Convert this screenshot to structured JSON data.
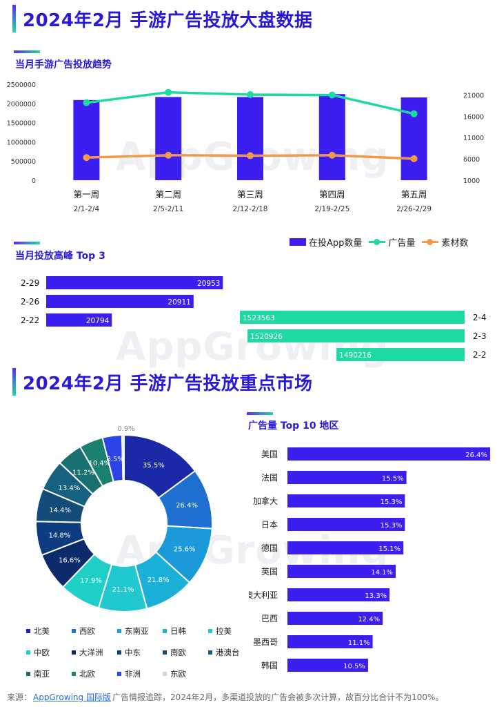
{
  "section1_title": "2024年2月 手游广告投放大盘数据",
  "section2_title": "2024年2月 手游广告投放重点市场",
  "watermark": "AppGrowing",
  "trend": {
    "subtitle": "当月手游广告投放趋势",
    "legend": [
      "在投App数量",
      "广告量",
      "素材数"
    ],
    "colors": {
      "bar": "#3b1ef0",
      "ads": "#1ed9a4",
      "creatives": "#f2994a"
    }
  },
  "peak": {
    "subtitle": "当月投放高峰 Top 3"
  },
  "market": {
    "top10_title": "广告量 Top 10 地区",
    "donut_legend": [
      "北美",
      "西欧",
      "东南亚",
      "日韩",
      "拉美",
      "中欧",
      "大洋洲",
      "中东",
      "南欧",
      "港澳台",
      "南亚",
      "北欧",
      "非洲",
      "东欧"
    ]
  },
  "footer": {
    "prefix": "来源：",
    "brand": "AppGrowing 国际版",
    "text": "广告情报追踪，2024年2月，多渠道投放的广告会被多次计算，故百分比合计不为100%。"
  },
  "chart_data": [
    {
      "type": "bar",
      "title": "当月手游广告投放趋势",
      "categories": [
        "第一周",
        "第二周",
        "第三周",
        "第四周",
        "第五周"
      ],
      "sublabels": [
        "2/1-2/4",
        "2/5-2/11",
        "2/12-2/18",
        "2/19-2/25",
        "2/26-2/29"
      ],
      "y_ticks": [
        "2500000",
        "2000000",
        "1500000",
        "1000000",
        "500000",
        "0"
      ],
      "y2_ticks": [
        "21000",
        "16000",
        "11000",
        "6000",
        "1000"
      ],
      "ylim": [
        0,
        2500000
      ],
      "y2lim": [
        1000,
        23500
      ],
      "legend_position": "bottom-right",
      "series": [
        {
          "name": "在投App数量",
          "kind": "bar",
          "axis": "right",
          "values": [
            19800,
            20500,
            20500,
            21200,
            20400
          ]
        },
        {
          "name": "广告量",
          "kind": "line",
          "axis": "left",
          "values": [
            2020000,
            2290000,
            2230000,
            2220000,
            1730000
          ]
        },
        {
          "name": "素材数",
          "kind": "line",
          "axis": "left",
          "values": [
            590000,
            650000,
            640000,
            650000,
            560000
          ]
        }
      ]
    },
    {
      "type": "bar",
      "title": "当月投放高峰 Top 3",
      "series": [
        {
          "name": "在投App数量",
          "labels": [
            "2-29",
            "2-26",
            "2-22"
          ],
          "values": [
            20953,
            20911,
            20794
          ],
          "xlim": [
            0,
            21000
          ]
        },
        {
          "name": "广告量",
          "labels": [
            "2-4",
            "2-3",
            "2-2"
          ],
          "values": [
            1523563,
            1520926,
            1490216
          ],
          "xlim": [
            1446000,
            1523563
          ]
        }
      ]
    },
    {
      "type": "pie",
      "title": "",
      "categories": [
        "北美",
        "西欧",
        "东南亚",
        "日韩",
        "拉美",
        "中欧",
        "大洋洲",
        "中东",
        "南欧",
        "港澳台",
        "南亚",
        "北欧",
        "非洲",
        "东欧"
      ],
      "values": [
        35.5,
        26.4,
        25.6,
        21.8,
        21.1,
        17.9,
        16.6,
        14.8,
        14.4,
        13.4,
        11.2,
        10.4,
        8.5,
        0.9
      ],
      "labels": [
        "35.5%",
        "26.4%",
        "25.6%",
        "21.8%",
        "21.1%",
        "17.9%",
        "16.6%",
        "14.8%",
        "14.4%",
        "13.4%",
        "11.2%",
        "10.4%",
        "8.5%",
        "0.9%"
      ],
      "colors": [
        "#1a2aa6",
        "#1f6fd0",
        "#1a9ad8",
        "#1ab0d8",
        "#22c8d0",
        "#1fd0c8",
        "#0d2a6a",
        "#0d3c80",
        "#134c78",
        "#166080",
        "#187070",
        "#1a8070",
        "#2a44e8",
        "#c9d6f0"
      ]
    },
    {
      "type": "bar",
      "title": "广告量 Top 10 地区",
      "categories": [
        "美国",
        "法国",
        "加拿大",
        "日本",
        "德国",
        "英国",
        "澳大利亚",
        "巴西",
        "墨西哥",
        "韩国"
      ],
      "values": [
        26.4,
        15.5,
        15.3,
        15.3,
        15.1,
        14.1,
        13.3,
        12.4,
        11.1,
        10.5
      ],
      "labels": [
        "26.4%",
        "15.5%",
        "15.3%",
        "15.3%",
        "15.1%",
        "14.1%",
        "13.3%",
        "12.4%",
        "11.1%",
        "10.5%"
      ],
      "xlim": [
        0,
        26.4
      ]
    }
  ]
}
